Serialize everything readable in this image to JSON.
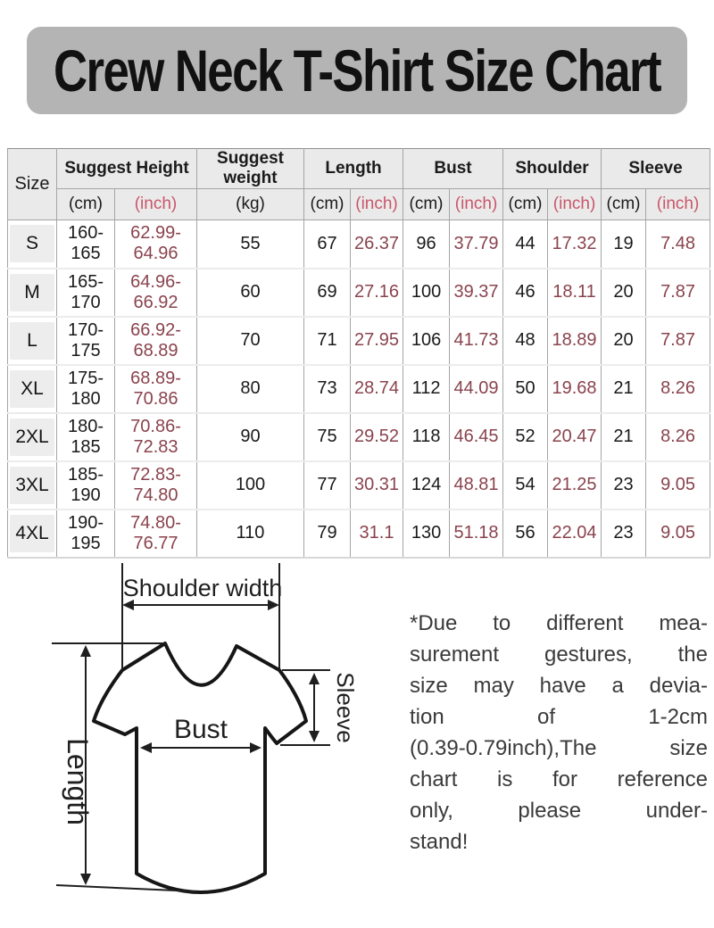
{
  "title": "Crew Neck T-Shirt Size Chart",
  "theme": {
    "title_bg": "#b4b4b4",
    "header_bg": "#eaeaea",
    "grid_color": "#a5a5a5",
    "inch_header_color": "#c9566a",
    "inch_value_color": "#8a434d"
  },
  "table": {
    "corner_label": "Size",
    "groups": [
      {
        "label": "Suggest Height",
        "subs": [
          "(cm)",
          "(inch)"
        ]
      },
      {
        "label": "Suggest weight",
        "subs": [
          "(kg)"
        ]
      },
      {
        "label": "Length",
        "subs": [
          "(cm)",
          "(inch)"
        ]
      },
      {
        "label": "Bust",
        "subs": [
          "(cm)",
          "(inch)"
        ]
      },
      {
        "label": "Shoulder",
        "subs": [
          "(cm)",
          "(inch)"
        ]
      },
      {
        "label": "Sleeve",
        "subs": [
          "(cm)",
          "(inch)"
        ]
      }
    ]
  },
  "chart_data": {
    "type": "table",
    "title": "Crew Neck T-Shirt Size Chart",
    "columns": [
      "Size",
      "Suggest Height (cm)",
      "Suggest Height (inch)",
      "Suggest weight (kg)",
      "Length (cm)",
      "Length (inch)",
      "Bust (cm)",
      "Bust (inch)",
      "Shoulder (cm)",
      "Shoulder (inch)",
      "Sleeve (cm)",
      "Sleeve (inch)"
    ],
    "rows": [
      [
        "S",
        "160-165",
        "62.99-64.96",
        "55",
        "67",
        "26.37",
        "96",
        "37.79",
        "44",
        "17.32",
        "19",
        "7.48"
      ],
      [
        "M",
        "165-170",
        "64.96-66.92",
        "60",
        "69",
        "27.16",
        "100",
        "39.37",
        "46",
        "18.11",
        "20",
        "7.87"
      ],
      [
        "L",
        "170-175",
        "66.92-68.89",
        "70",
        "71",
        "27.95",
        "106",
        "41.73",
        "48",
        "18.89",
        "20",
        "7.87"
      ],
      [
        "XL",
        "175-180",
        "68.89-70.86",
        "80",
        "73",
        "28.74",
        "112",
        "44.09",
        "50",
        "19.68",
        "21",
        "8.26"
      ],
      [
        "2XL",
        "180-185",
        "70.86-72.83",
        "90",
        "75",
        "29.52",
        "118",
        "46.45",
        "52",
        "20.47",
        "21",
        "8.26"
      ],
      [
        "3XL",
        "185-190",
        "72.83-74.80",
        "100",
        "77",
        "30.31",
        "124",
        "48.81",
        "54",
        "21.25",
        "23",
        "9.05"
      ],
      [
        "4XL",
        "190-195",
        "74.80-76.77",
        "110",
        "79",
        "31.1",
        "130",
        "51.18",
        "56",
        "22.04",
        "23",
        "9.05"
      ]
    ]
  },
  "diagram": {
    "labels": {
      "shoulder_width": "Shoulder width",
      "bust": "Bust",
      "sleeve": "Sleeve",
      "length": "Length"
    }
  },
  "note": {
    "lines": [
      "*Due to different mea-",
      "surement gestures, the",
      "size may have a devia-",
      "tion of 1-2cm",
      "(0.39-0.79inch),The size",
      "chart is for reference",
      "only, please under-",
      "stand!"
    ]
  }
}
